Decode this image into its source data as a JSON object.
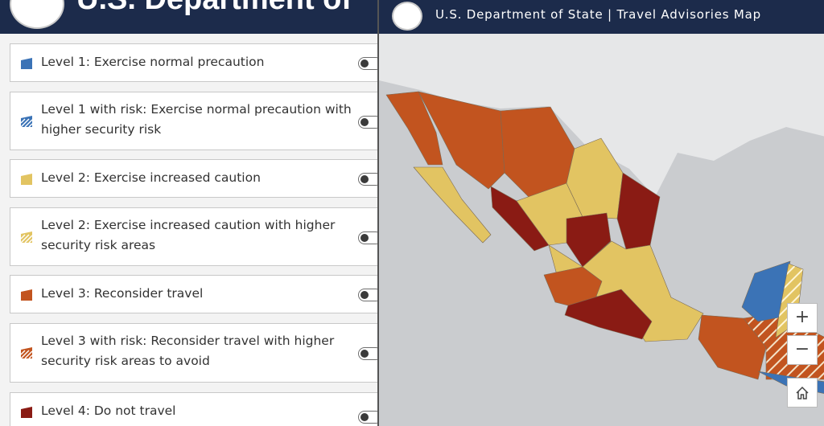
{
  "left_panel": {
    "title": "U.S. Department of"
  },
  "legend": [
    {
      "label": "Level 1: Exercise normal precaution",
      "color": "#3b73b6",
      "striped": false
    },
    {
      "label": "Level 1 with risk: Exercise normal precaution with higher security risk",
      "color": "#3b73b6",
      "striped": true
    },
    {
      "label": "Level 2: Exercise increased caution",
      "color": "#e2c462",
      "striped": false
    },
    {
      "label": "Level 2: Exercise increased caution with higher security risk areas",
      "color": "#e2c462",
      "striped": true
    },
    {
      "label": "Level 3: Reconsider travel",
      "color": "#c2541f",
      "striped": false
    },
    {
      "label": "Level 3 with risk: Reconsider travel with higher security risk areas to avoid",
      "color": "#c2541f",
      "striped": true
    },
    {
      "label": "Level 4: Do not travel",
      "color": "#8a1b14",
      "striped": false
    }
  ],
  "map": {
    "title": "U.S. Department of State | Travel Advisories Map",
    "zoom_in": "+",
    "zoom_out": "−"
  }
}
